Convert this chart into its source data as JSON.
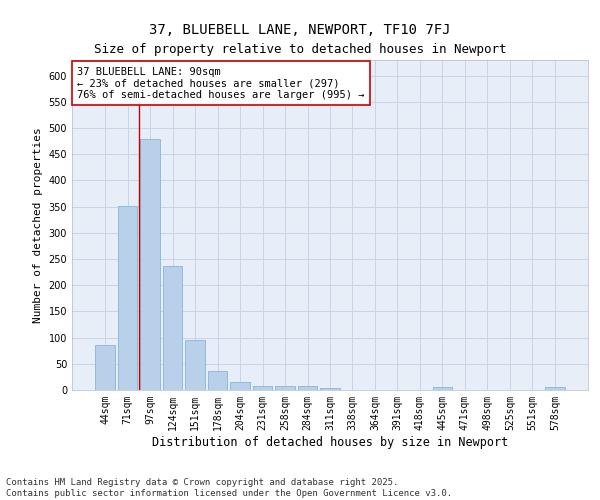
{
  "title1": "37, BLUEBELL LANE, NEWPORT, TF10 7FJ",
  "title2": "Size of property relative to detached houses in Newport",
  "xlabel": "Distribution of detached houses by size in Newport",
  "ylabel": "Number of detached properties",
  "categories": [
    "44sqm",
    "71sqm",
    "97sqm",
    "124sqm",
    "151sqm",
    "178sqm",
    "204sqm",
    "231sqm",
    "258sqm",
    "284sqm",
    "311sqm",
    "338sqm",
    "364sqm",
    "391sqm",
    "418sqm",
    "445sqm",
    "471sqm",
    "498sqm",
    "525sqm",
    "551sqm",
    "578sqm"
  ],
  "values": [
    85,
    352,
    480,
    237,
    96,
    37,
    16,
    8,
    8,
    7,
    4,
    0,
    0,
    0,
    0,
    5,
    0,
    0,
    0,
    0,
    5
  ],
  "bar_color": "#b8d0ea",
  "bar_edge_color": "#7aadd4",
  "vline_x": 1.5,
  "vline_color": "#cc0000",
  "annotation_text": "37 BLUEBELL LANE: 90sqm\n← 23% of detached houses are smaller (297)\n76% of semi-detached houses are larger (995) →",
  "annotation_box_color": "#ffffff",
  "annotation_box_edge": "#cc0000",
  "ylim": [
    0,
    630
  ],
  "yticks": [
    0,
    50,
    100,
    150,
    200,
    250,
    300,
    350,
    400,
    450,
    500,
    550,
    600
  ],
  "grid_color": "#c8d4e8",
  "background_color": "#e8eef8",
  "footer_line1": "Contains HM Land Registry data © Crown copyright and database right 2025.",
  "footer_line2": "Contains public sector information licensed under the Open Government Licence v3.0.",
  "title_fontsize": 10,
  "subtitle_fontsize": 9,
  "xlabel_fontsize": 8.5,
  "ylabel_fontsize": 8,
  "tick_fontsize": 7,
  "annotation_fontsize": 7.5,
  "footer_fontsize": 6.5
}
